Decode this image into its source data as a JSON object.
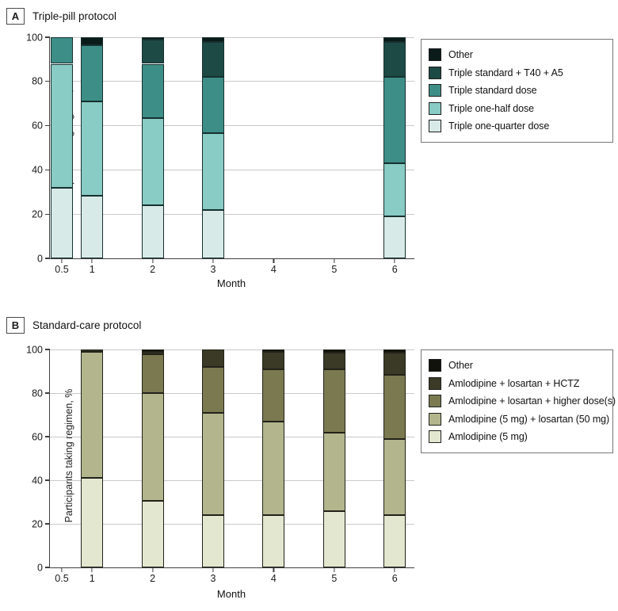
{
  "figure": {
    "ylabel": "Participants taking regimen, %",
    "xlabel": "Month"
  },
  "chart_data": [
    {
      "type": "bar",
      "stacked": true,
      "panel_label": "A",
      "title": "Triple-pill protocol",
      "xlabel": "Month",
      "ylabel": "Participants taking regimen, %",
      "ylim": [
        0,
        100
      ],
      "yticks": [
        0,
        20,
        40,
        60,
        80,
        100
      ],
      "grid": "horizontal",
      "legend_position": "right-outside",
      "months": [
        0.5,
        1,
        2,
        3,
        4,
        5,
        6
      ],
      "month_labels": [
        "0.5",
        "1",
        "2",
        "3",
        "4",
        "5",
        "6"
      ],
      "stroke": "#16302e",
      "series": [
        {
          "name": "Triple one-quarter dose",
          "color": "#d8eae8",
          "values": [
            32,
            28.5,
            24,
            22,
            0,
            0,
            19
          ]
        },
        {
          "name": "Triple one-half dose",
          "color": "#89cbc5",
          "values": [
            56,
            42.5,
            39.5,
            34.5,
            0,
            0,
            24
          ]
        },
        {
          "name": "Triple standard dose",
          "color": "#3e8e88",
          "values": [
            12,
            25.5,
            24.5,
            25.5,
            0,
            0,
            39
          ]
        },
        {
          "name": "Triple standard + T40 + A5",
          "color": "#1e4a46",
          "values": [
            0,
            0,
            11,
            16,
            0,
            0,
            16
          ]
        },
        {
          "name": "Other",
          "color": "#0b1b1a",
          "values": [
            0,
            3.5,
            1,
            2,
            0,
            0,
            2
          ]
        }
      ]
    },
    {
      "type": "bar",
      "stacked": true,
      "panel_label": "B",
      "title": "Standard-care protocol",
      "xlabel": "Month",
      "ylabel": "Participants taking regimen, %",
      "ylim": [
        0,
        100
      ],
      "yticks": [
        0,
        20,
        40,
        60,
        80,
        100
      ],
      "grid": "horizontal",
      "legend_position": "right-outside",
      "months": [
        0.5,
        1,
        2,
        3,
        4,
        5,
        6
      ],
      "month_labels": [
        "0.5",
        "1",
        "2",
        "3",
        "4",
        "5",
        "6"
      ],
      "stroke": "#22221a",
      "series": [
        {
          "name": "Amlodipine (5 mg)",
          "color": "#e4e7d0",
          "values": [
            0,
            41,
            30.5,
            24,
            24,
            26,
            24
          ]
        },
        {
          "name": "Amlodipine (5 mg) + losartan (50 mg)",
          "color": "#b3b68c",
          "values": [
            0,
            58,
            49.5,
            47,
            43,
            36,
            35
          ]
        },
        {
          "name": "Amlodipine + losartan + higher dose(s)",
          "color": "#7b7950",
          "values": [
            0,
            0,
            18,
            21,
            24,
            29,
            29.5
          ]
        },
        {
          "name": "Amlodipine + losartan + HCTZ",
          "color": "#3a3a26",
          "values": [
            0,
            1,
            1,
            8,
            8,
            7.5,
            10
          ]
        },
        {
          "name": "Other",
          "color": "#12120c",
          "values": [
            0,
            0,
            1,
            0,
            1,
            1.5,
            1.5
          ]
        }
      ]
    }
  ]
}
